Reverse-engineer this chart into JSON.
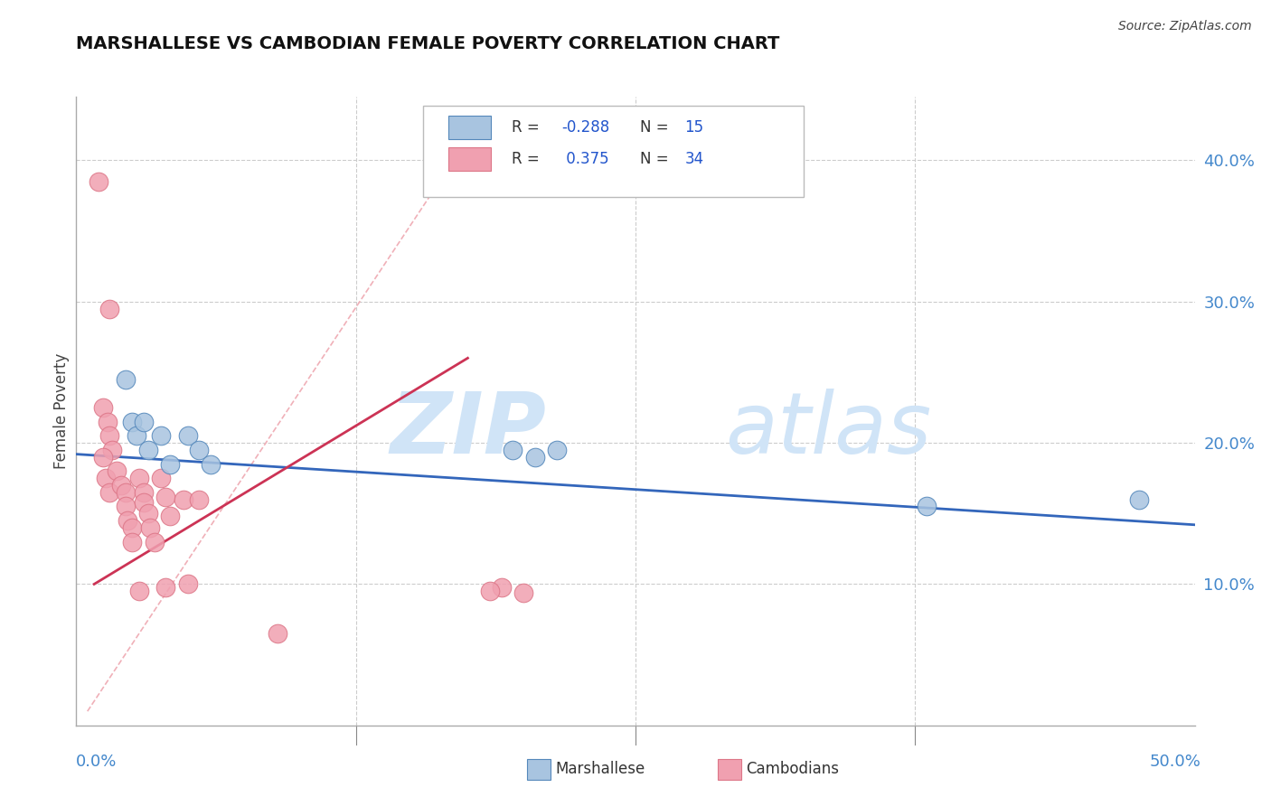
{
  "title": "MARSHALLESE VS CAMBODIAN FEMALE POVERTY CORRELATION CHART",
  "source": "Source: ZipAtlas.com",
  "ylabel": "Female Poverty",
  "xlim": [
    0.0,
    0.5
  ],
  "ylim": [
    0.0,
    0.445
  ],
  "yticks": [
    0.1,
    0.2,
    0.3,
    0.4
  ],
  "ytick_labels": [
    "10.0%",
    "20.0%",
    "30.0%",
    "40.0%"
  ],
  "xtick_positions": [
    0.125,
    0.25,
    0.375
  ],
  "grid_color": "#cccccc",
  "background_color": "#ffffff",
  "watermark_zip": "ZIP",
  "watermark_atlas": "atlas",
  "watermark_color": "#d0e4f7",
  "legend_r1": "-0.288",
  "legend_n1": "15",
  "legend_r2": "0.375",
  "legend_n2": "34",
  "blue_color": "#a8c4e0",
  "pink_color": "#f0a0b0",
  "blue_edge_color": "#5588bb",
  "pink_edge_color": "#dd7788",
  "blue_scatter": [
    [
      0.022,
      0.245
    ],
    [
      0.025,
      0.215
    ],
    [
      0.027,
      0.205
    ],
    [
      0.03,
      0.215
    ],
    [
      0.032,
      0.195
    ],
    [
      0.038,
      0.205
    ],
    [
      0.042,
      0.185
    ],
    [
      0.05,
      0.205
    ],
    [
      0.055,
      0.195
    ],
    [
      0.06,
      0.185
    ],
    [
      0.195,
      0.195
    ],
    [
      0.205,
      0.19
    ],
    [
      0.215,
      0.195
    ],
    [
      0.38,
      0.155
    ],
    [
      0.475,
      0.16
    ]
  ],
  "pink_scatter": [
    [
      0.01,
      0.385
    ],
    [
      0.015,
      0.295
    ],
    [
      0.012,
      0.225
    ],
    [
      0.014,
      0.215
    ],
    [
      0.015,
      0.205
    ],
    [
      0.016,
      0.195
    ],
    [
      0.012,
      0.19
    ],
    [
      0.013,
      0.175
    ],
    [
      0.015,
      0.165
    ],
    [
      0.018,
      0.18
    ],
    [
      0.02,
      0.17
    ],
    [
      0.022,
      0.165
    ],
    [
      0.022,
      0.155
    ],
    [
      0.023,
      0.145
    ],
    [
      0.025,
      0.14
    ],
    [
      0.025,
      0.13
    ],
    [
      0.028,
      0.175
    ],
    [
      0.03,
      0.165
    ],
    [
      0.03,
      0.158
    ],
    [
      0.032,
      0.15
    ],
    [
      0.033,
      0.14
    ],
    [
      0.035,
      0.13
    ],
    [
      0.028,
      0.095
    ],
    [
      0.038,
      0.175
    ],
    [
      0.04,
      0.162
    ],
    [
      0.042,
      0.148
    ],
    [
      0.04,
      0.098
    ],
    [
      0.048,
      0.16
    ],
    [
      0.05,
      0.1
    ],
    [
      0.055,
      0.16
    ],
    [
      0.19,
      0.098
    ],
    [
      0.2,
      0.094
    ],
    [
      0.09,
      0.065
    ],
    [
      0.185,
      0.095
    ]
  ],
  "blue_line_x": [
    0.0,
    0.5
  ],
  "blue_line_y": [
    0.192,
    0.142
  ],
  "pink_line_x": [
    0.008,
    0.175
  ],
  "pink_line_y": [
    0.1,
    0.26
  ],
  "diag_line_x": [
    0.005,
    0.175
  ],
  "diag_line_y": [
    0.01,
    0.415
  ]
}
